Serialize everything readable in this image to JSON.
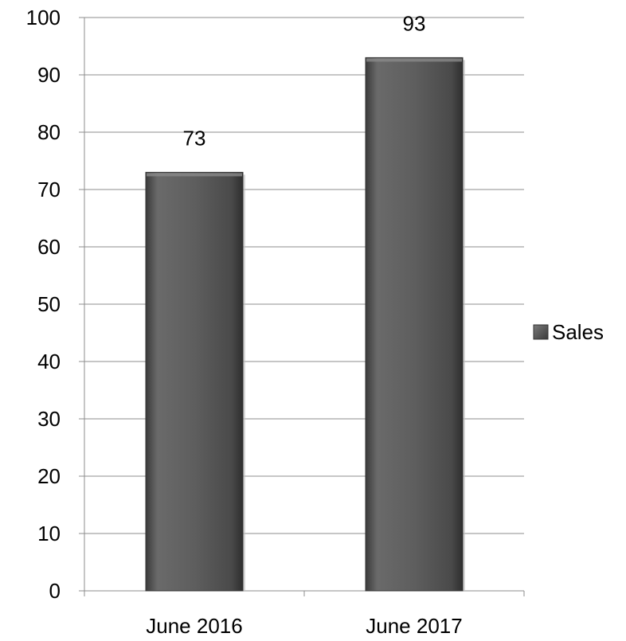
{
  "chart_data": {
    "type": "bar",
    "categories": [
      "June 2016",
      "June 2017"
    ],
    "series": [
      {
        "name": "Sales",
        "values": [
          73,
          93
        ]
      }
    ],
    "data_labels": [
      "73",
      "93"
    ],
    "ylim": [
      0,
      100
    ],
    "yticks": [
      0,
      10,
      20,
      30,
      40,
      50,
      60,
      70,
      80,
      90,
      100
    ],
    "ytick_labels": [
      "0",
      "10",
      "20",
      "30",
      "40",
      "50",
      "60",
      "70",
      "80",
      "90",
      "100"
    ],
    "grid": true,
    "legend_position": "right",
    "bar_color": "#555555",
    "title": "",
    "xlabel": "",
    "ylabel": ""
  }
}
